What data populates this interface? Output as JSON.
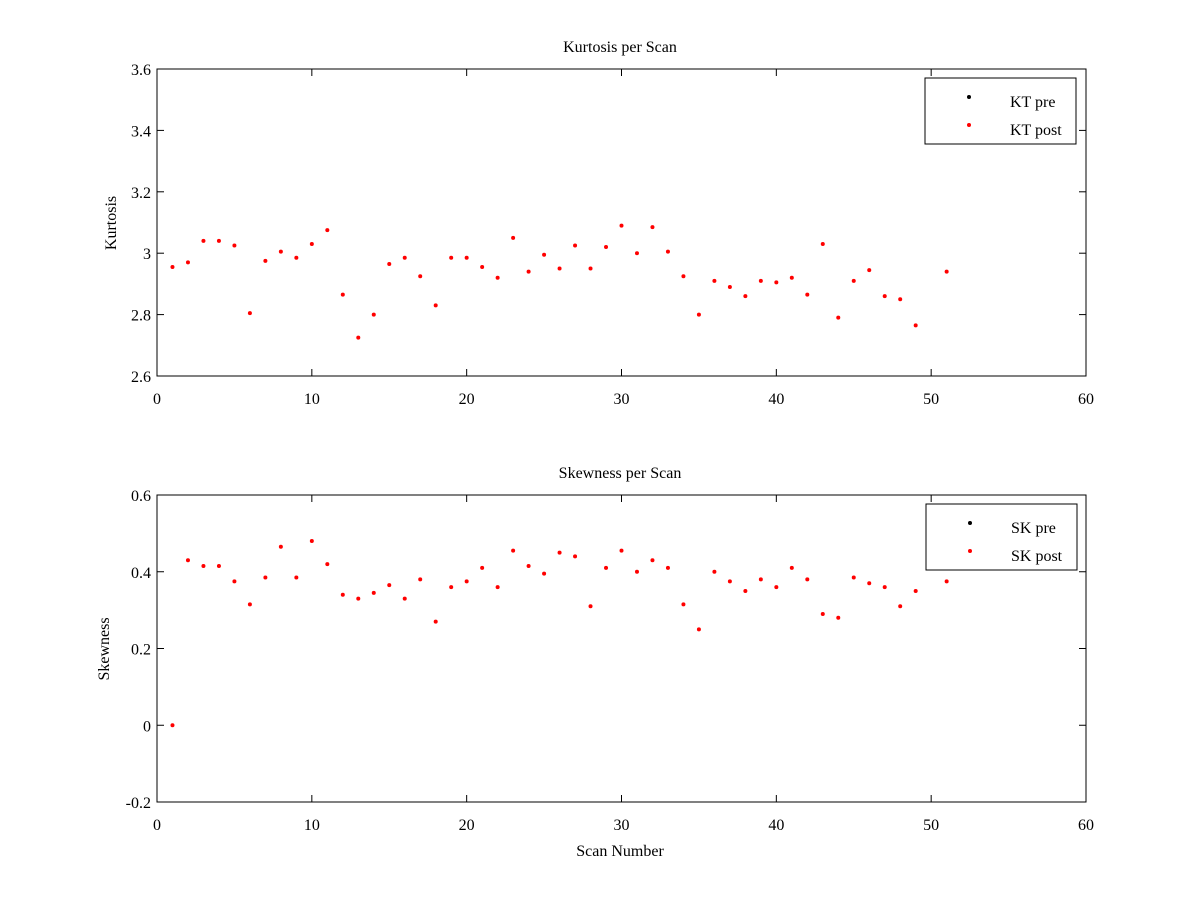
{
  "chart_data": [
    {
      "type": "scatter",
      "title": "Kurtosis per Scan",
      "xlabel": "",
      "ylabel": "Kurtosis",
      "xlim": [
        0,
        60
      ],
      "ylim": [
        2.6,
        3.6
      ],
      "x_ticks": [
        0,
        10,
        20,
        30,
        40,
        50,
        60
      ],
      "y_ticks": [
        2.6,
        2.8,
        3,
        3.2,
        3.4,
        3.6
      ],
      "x_tick_labels": [
        "0",
        "10",
        "20",
        "30",
        "40",
        "50",
        "60"
      ],
      "y_tick_labels": [
        "2.6",
        "2.8",
        "3",
        "3.2",
        "3.4",
        "3.6"
      ],
      "grid": false,
      "legend_position": "top-right",
      "series": [
        {
          "name": "KT pre",
          "color": "#000000",
          "x": [],
          "y": []
        },
        {
          "name": "KT post",
          "color": "#ff0000",
          "x": [
            1,
            2,
            3,
            4,
            5,
            6,
            7,
            8,
            9,
            10,
            11,
            12,
            13,
            14,
            15,
            16,
            17,
            18,
            19,
            20,
            21,
            22,
            23,
            24,
            25,
            26,
            27,
            28,
            29,
            30,
            31,
            32,
            33,
            34,
            35,
            36,
            37,
            38,
            39,
            40,
            41,
            42,
            43,
            44,
            45,
            46,
            47,
            48,
            49,
            51
          ],
          "y": [
            2.955,
            2.97,
            3.04,
            3.04,
            3.025,
            2.805,
            2.975,
            3.005,
            2.985,
            3.03,
            3.075,
            2.865,
            2.725,
            2.8,
            2.965,
            2.985,
            2.925,
            2.83,
            2.985,
            2.985,
            2.955,
            2.92,
            3.05,
            2.94,
            2.995,
            2.95,
            3.025,
            2.95,
            3.02,
            3.09,
            3.0,
            3.085,
            3.005,
            2.925,
            2.8,
            2.91,
            2.89,
            2.86,
            2.91,
            2.905,
            2.92,
            2.865,
            3.03,
            2.79,
            2.91,
            2.945,
            2.86,
            2.85,
            2.765,
            2.94
          ]
        }
      ]
    },
    {
      "type": "scatter",
      "title": "Skewness per Scan",
      "xlabel": "Scan Number",
      "ylabel": "Skewness",
      "xlim": [
        0,
        60
      ],
      "ylim": [
        -0.2,
        0.6
      ],
      "x_ticks": [
        0,
        10,
        20,
        30,
        40,
        50,
        60
      ],
      "y_ticks": [
        -0.2,
        0,
        0.2,
        0.4,
        0.6
      ],
      "x_tick_labels": [
        "0",
        "10",
        "20",
        "30",
        "40",
        "50",
        "60"
      ],
      "y_tick_labels": [
        "-0.2",
        "0",
        "0.2",
        "0.4",
        "0.6"
      ],
      "grid": false,
      "legend_position": "top-right",
      "series": [
        {
          "name": "SK pre",
          "color": "#000000",
          "x": [],
          "y": []
        },
        {
          "name": "SK post",
          "color": "#ff0000",
          "x": [
            1,
            2,
            3,
            4,
            5,
            6,
            7,
            8,
            9,
            10,
            11,
            12,
            13,
            14,
            15,
            16,
            17,
            18,
            19,
            20,
            21,
            22,
            23,
            24,
            25,
            26,
            27,
            28,
            29,
            30,
            31,
            32,
            33,
            34,
            35,
            36,
            37,
            38,
            39,
            40,
            41,
            42,
            43,
            44,
            45,
            46,
            47,
            48,
            49,
            51
          ],
          "y": [
            0.0,
            0.43,
            0.415,
            0.415,
            0.375,
            0.315,
            0.385,
            0.465,
            0.385,
            0.48,
            0.42,
            0.34,
            0.33,
            0.345,
            0.365,
            0.33,
            0.38,
            0.27,
            0.36,
            0.375,
            0.41,
            0.36,
            0.455,
            0.415,
            0.395,
            0.45,
            0.44,
            0.31,
            0.41,
            0.455,
            0.4,
            0.43,
            0.41,
            0.315,
            0.25,
            0.4,
            0.375,
            0.35,
            0.38,
            0.36,
            0.41,
            0.38,
            0.29,
            0.28,
            0.385,
            0.37,
            0.36,
            0.31,
            0.35,
            0.375
          ]
        }
      ]
    }
  ]
}
